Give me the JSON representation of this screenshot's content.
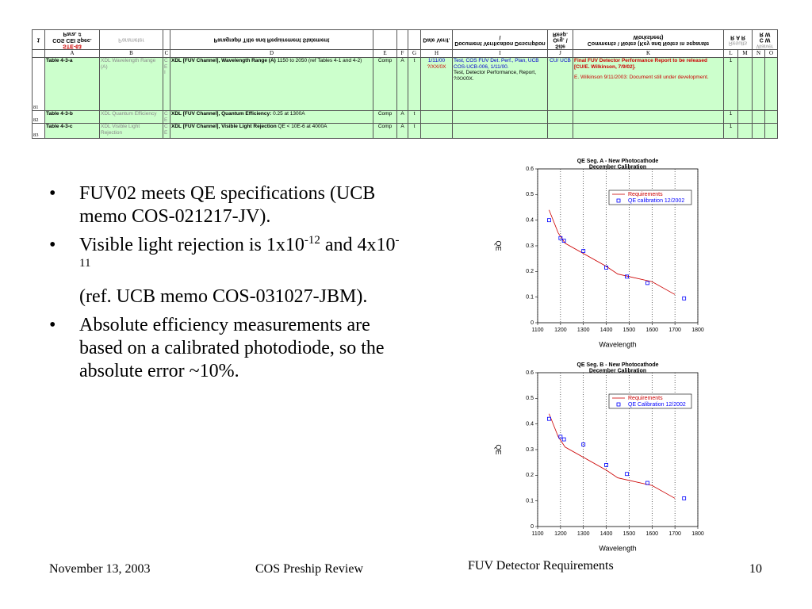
{
  "table": {
    "header": {
      "row_number": "1",
      "a_title": "COS CEI Spec. Para. #",
      "a_sub": "STE-63",
      "b": "Parameter",
      "d": "Paragraph Title and Requirement Statement",
      "h": "Date Verif.",
      "i": "Document Verification Description \\",
      "j": "Site Org. \\ Resp.",
      "k": "Comments \\ Notes (Key and Notes in separate Worksheet)",
      "l": "R",
      "m": "A R",
      "n": "R W",
      "o": "C W",
      "results": "Results",
      "waiver": "Waiver"
    },
    "column_letters": [
      "A",
      "B",
      "C",
      "D",
      "E",
      "F",
      "G",
      "H",
      "I",
      "J",
      "K",
      "L",
      "M",
      "N",
      "O"
    ],
    "rows": [
      {
        "number": "81",
        "cells": [
          "Table 4-3-a",
          "XDL Wavelength Range (A)",
          "C E I",
          {
            "bold": "XDL [FUV Channel], Wavelength Range (A)",
            "text": "1150 to 2050 (ref Tables 4-1 and 4-2)"
          },
          "Comp",
          "A",
          "t",
          [
            "1/11/00",
            "?/XX/0X"
          ],
          [
            "Test, COS FUV Det. Perf., Plan, UCB COS-UCB-006, 1/11/00.",
            "Test, Detector Performance, Report, ?/XX/0X."
          ],
          "CU/ UCB",
          [
            "Final FUV Detector Performance Report to be released [CU/E. Wilkinson, 7/9/02].",
            "E. Wilkinson 9/11/2003:  Document still under development."
          ],
          "1",
          null,
          null,
          null
        ]
      },
      {
        "number": "82",
        "cells": [
          "Table 4-3-b",
          "XDL Quantum Efficiency",
          "C E",
          {
            "bold": "XDL [FUV Channel], Quantum Efficiency:",
            "text": "0.25 at 1300A"
          },
          "Comp",
          "A",
          "t",
          null,
          null,
          null,
          null,
          "1",
          null,
          null,
          null
        ]
      },
      {
        "number": "83",
        "cells": [
          "Table 4-3-c",
          "XDL Visible Light Rejection",
          "C E",
          {
            "bold": "XDL [FUV Channel], Visible Light Rejection",
            "text": "QE < 10E-6 at 4000A"
          },
          "Comp",
          "A",
          "t",
          null,
          null,
          null,
          null,
          "1",
          null,
          null,
          null
        ]
      }
    ]
  },
  "bullets": [
    [
      {
        "text": "FUV02 meets QE specifications (UCB memo COS-021217-JV)."
      }
    ],
    [
      {
        "text": "Visible light rejection is 1x10"
      },
      {
        "sup": "-12"
      },
      {
        "text": " and 4x10"
      },
      {
        "sup": "-11"
      }
    ],
    [
      {
        "text": "Absolute efficiency measurements are based on a calibrated photodiode, so the absolute error ~10%."
      }
    ]
  ],
  "reference": "(ref. UCB memo COS-031027-JBM).",
  "footer": {
    "date": "November 13, 2003",
    "event": "COS Preship Review",
    "topic": "FUV Detector Requirements",
    "page": "10"
  },
  "chart_data": [
    {
      "type": "line",
      "title": "QE  Seg. A - New Photocathode",
      "subtitle": "December Calibration",
      "xlabel": "Wavelength",
      "ylabel": "QE",
      "xlim": [
        1100,
        1800
      ],
      "xticks": [
        1100,
        1200,
        1300,
        1400,
        1500,
        1600,
        1700,
        1800
      ],
      "ylim": [
        0,
        0.6
      ],
      "yticks": [
        0,
        0.1,
        0.2,
        0.3,
        0.4,
        0.5,
        0.6
      ],
      "grid": "x",
      "legend": "upper right",
      "series": [
        {
          "name": "Requirements",
          "color": "#cc0000",
          "mode": "line",
          "x": [
            1150,
            1190,
            1220,
            1400,
            1450,
            1500,
            1600,
            1700
          ],
          "values": [
            0.44,
            0.35,
            0.31,
            0.22,
            0.19,
            0.18,
            0.16,
            0.11
          ]
        },
        {
          "name": "QE calibration 12/2002",
          "color": "#0000ff",
          "mode": "markers",
          "x": [
            1150,
            1200,
            1215,
            1300,
            1400,
            1490,
            1580,
            1740
          ],
          "values": [
            0.4,
            0.33,
            0.32,
            0.28,
            0.215,
            0.18,
            0.155,
            0.095
          ]
        }
      ]
    },
    {
      "type": "line",
      "title": "QE  Seg. B - New Photocathode",
      "subtitle": "December Calibration",
      "xlabel": "Wavelength",
      "ylabel": "QE",
      "xlim": [
        1100,
        1800
      ],
      "xticks": [
        1100,
        1200,
        1300,
        1400,
        1500,
        1600,
        1700,
        1800
      ],
      "ylim": [
        0,
        0.6
      ],
      "yticks": [
        0,
        0.1,
        0.2,
        0.3,
        0.4,
        0.5,
        0.6
      ],
      "grid": "x",
      "legend": "upper right",
      "series": [
        {
          "name": "Requirements",
          "color": "#cc0000",
          "mode": "line",
          "x": [
            1150,
            1190,
            1220,
            1400,
            1450,
            1500,
            1600,
            1700
          ],
          "values": [
            0.44,
            0.35,
            0.31,
            0.22,
            0.19,
            0.18,
            0.16,
            0.11
          ]
        },
        {
          "name": "QE Calibration 12/2002",
          "color": "#0000ff",
          "mode": "markers",
          "x": [
            1150,
            1200,
            1215,
            1300,
            1400,
            1490,
            1580,
            1740
          ],
          "values": [
            0.42,
            0.35,
            0.34,
            0.32,
            0.24,
            0.205,
            0.17,
            0.11
          ]
        }
      ]
    }
  ]
}
